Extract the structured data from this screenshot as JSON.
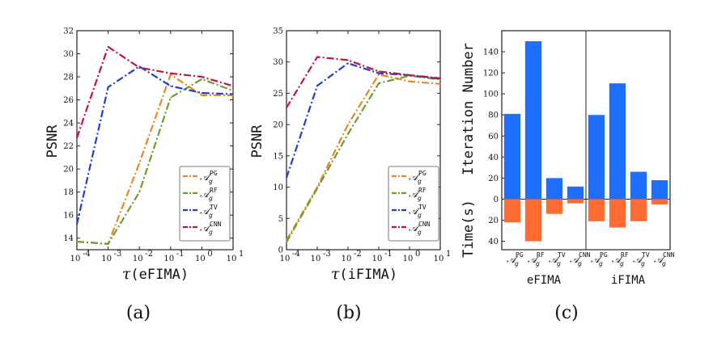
{
  "colors": {
    "pg": "#E8862A",
    "rf": "#6A9E2E",
    "tv": "#1F3FCC",
    "cnn": "#C0143C",
    "bar_top": "#1E6FFF",
    "bar_bottom": "#FF6B33"
  },
  "chart_data": [
    {
      "type": "line",
      "panel_label": "(a)",
      "xlabel_symbol": "τ",
      "xlabel_text": "(eFIMA)",
      "ylabel": "PSNR",
      "x_ticks": [
        "10",
        "10",
        "10",
        "10",
        "10",
        "10"
      ],
      "x_tick_exponents": [
        "-4",
        "-3",
        "-2",
        "-1",
        "0",
        "1"
      ],
      "y_ticks": [
        "14",
        "16",
        "18",
        "20",
        "22",
        "24",
        "26",
        "28",
        "30",
        "32"
      ],
      "ylim": [
        13,
        32
      ],
      "x": [
        -4,
        -3,
        -2,
        -1,
        0,
        1
      ],
      "series": [
        {
          "name": "PG",
          "key": "pg",
          "values": [
            13.7,
            13.5,
            20.5,
            28.2,
            26.4,
            26.4
          ]
        },
        {
          "name": "RF",
          "key": "rf",
          "values": [
            13.7,
            13.5,
            18.0,
            26.2,
            27.8,
            26.8
          ]
        },
        {
          "name": "TV",
          "key": "tv",
          "values": [
            15.2,
            27.1,
            28.9,
            27.2,
            26.6,
            26.5
          ]
        },
        {
          "name": "CNN",
          "key": "cnn",
          "values": [
            22.7,
            30.6,
            28.8,
            28.3,
            28.0,
            27.2
          ]
        }
      ],
      "legend_position": "bottom-right"
    },
    {
      "type": "line",
      "panel_label": "(b)",
      "xlabel_symbol": "τ",
      "xlabel_text": "(iFIMA)",
      "ylabel": "PSNR",
      "x_ticks": [
        "10",
        "10",
        "10",
        "10",
        "10",
        "10"
      ],
      "x_tick_exponents": [
        "-4",
        "-3",
        "-2",
        "-1",
        "0",
        "1"
      ],
      "y_ticks": [
        "0",
        "5",
        "10",
        "15",
        "20",
        "25",
        "30",
        "35"
      ],
      "ylim": [
        0,
        35
      ],
      "x": [
        -4,
        -3,
        -2,
        -1,
        0,
        1
      ],
      "series": [
        {
          "name": "PG",
          "key": "pg",
          "values": [
            1.5,
            10.0,
            20.0,
            28.0,
            26.9,
            26.5
          ]
        },
        {
          "name": "RF",
          "key": "rf",
          "values": [
            1.2,
            9.8,
            18.5,
            26.6,
            27.8,
            27.2
          ]
        },
        {
          "name": "TV",
          "key": "tv",
          "values": [
            11.5,
            26.2,
            29.8,
            28.2,
            27.9,
            27.3
          ]
        },
        {
          "name": "CNN",
          "key": "cnn",
          "values": [
            22.7,
            30.8,
            30.3,
            28.5,
            27.9,
            27.4
          ]
        }
      ],
      "legend_position": "bottom-right"
    },
    {
      "type": "bar",
      "panel_label": "(c)",
      "ylabel_top": "Iteration Number",
      "ylabel_bottom": "Time(s)",
      "y_ticks_top": [
        "0",
        "20",
        "40",
        "60",
        "80",
        "100",
        "120",
        "140"
      ],
      "y_ticks_bottom": [
        "20",
        "40"
      ],
      "ylim": [
        -48,
        160
      ],
      "groups": [
        "eFIMA",
        "iFIMA"
      ],
      "categories": [
        "PG",
        "RF",
        "TV",
        "CNN",
        "PG",
        "RF",
        "TV",
        "CNN"
      ],
      "series": [
        {
          "name": "Iteration Number",
          "values": [
            81,
            150,
            20,
            12,
            80,
            110,
            26,
            18
          ]
        },
        {
          "name": "Time(s)",
          "values": [
            22,
            40,
            14,
            4,
            21,
            27,
            21,
            5
          ]
        }
      ]
    }
  ]
}
